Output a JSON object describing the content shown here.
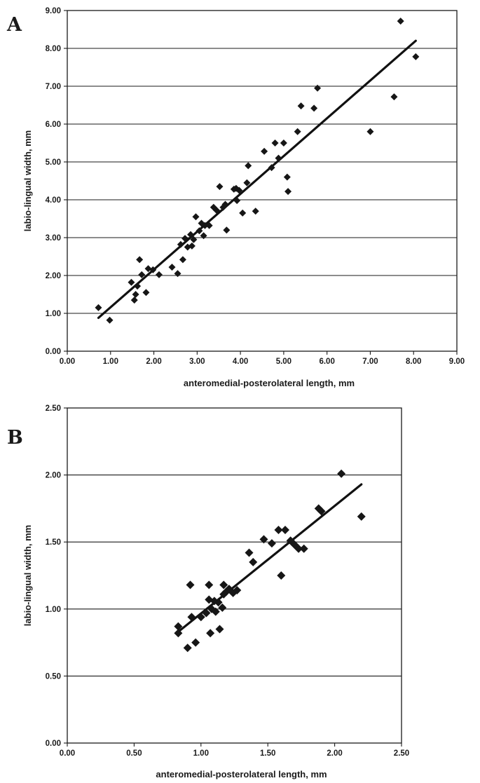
{
  "panels": [
    {
      "letter": "A"
    },
    {
      "letter": "B"
    }
  ],
  "chart_data": [
    {
      "type": "scatter",
      "xlabel": "anteromedial-posterolateral length, mm",
      "ylabel": "labio-lingual width, mm",
      "xlim": [
        0,
        9
      ],
      "ylim": [
        0,
        9
      ],
      "xticks": [
        "0.00",
        "1.00",
        "2.00",
        "3.00",
        "4.00",
        "5.00",
        "6.00",
        "7.00",
        "8.00",
        "9.00"
      ],
      "yticks": [
        "0.00",
        "1.00",
        "2.00",
        "3.00",
        "4.00",
        "5.00",
        "6.00",
        "7.00",
        "8.00",
        "9.00"
      ],
      "grid": "horizontal",
      "marker": "diamond",
      "series": [
        {
          "points": [
            [
              0.72,
              1.15
            ],
            [
              0.98,
              0.82
            ],
            [
              1.48,
              1.82
            ],
            [
              1.55,
              1.35
            ],
            [
              1.58,
              1.5
            ],
            [
              1.62,
              1.72
            ],
            [
              1.67,
              2.42
            ],
            [
              1.72,
              2.02
            ],
            [
              1.82,
              1.55
            ],
            [
              1.87,
              2.18
            ],
            [
              1.98,
              2.15
            ],
            [
              2.12,
              2.02
            ],
            [
              2.42,
              2.22
            ],
            [
              2.55,
              2.05
            ],
            [
              2.62,
              2.82
            ],
            [
              2.67,
              2.42
            ],
            [
              2.72,
              2.98
            ],
            [
              2.78,
              2.75
            ],
            [
              2.85,
              3.08
            ],
            [
              2.88,
              2.78
            ],
            [
              2.92,
              2.95
            ],
            [
              2.97,
              3.55
            ],
            [
              3.05,
              3.18
            ],
            [
              3.1,
              3.38
            ],
            [
              3.15,
              3.05
            ],
            [
              3.18,
              3.32
            ],
            [
              3.28,
              3.32
            ],
            [
              3.38,
              3.8
            ],
            [
              3.45,
              3.72
            ],
            [
              3.52,
              4.35
            ],
            [
              3.6,
              3.8
            ],
            [
              3.65,
              3.88
            ],
            [
              3.68,
              3.2
            ],
            [
              3.85,
              4.28
            ],
            [
              3.9,
              4.3
            ],
            [
              3.92,
              3.98
            ],
            [
              3.97,
              4.25
            ],
            [
              4.05,
              3.65
            ],
            [
              4.15,
              4.45
            ],
            [
              4.18,
              4.9
            ],
            [
              4.35,
              3.7
            ],
            [
              4.55,
              5.28
            ],
            [
              4.72,
              4.85
            ],
            [
              4.8,
              5.5
            ],
            [
              4.88,
              5.1
            ],
            [
              5.0,
              5.5
            ],
            [
              5.08,
              4.6
            ],
            [
              5.1,
              4.22
            ],
            [
              5.32,
              5.8
            ],
            [
              5.4,
              6.48
            ],
            [
              5.7,
              6.42
            ],
            [
              5.78,
              6.95
            ],
            [
              7.0,
              5.8
            ],
            [
              7.55,
              6.72
            ],
            [
              7.7,
              8.72
            ],
            [
              8.05,
              7.78
            ]
          ]
        }
      ],
      "trendline": [
        [
          0.72,
          0.88
        ],
        [
          8.05,
          8.2
        ]
      ]
    },
    {
      "type": "scatter",
      "xlabel": "anteromedial-posterolateral length, mm",
      "ylabel": "labio-lingual width, mm",
      "xlim": [
        0,
        2.5
      ],
      "ylim": [
        0,
        2.5
      ],
      "xticks": [
        "0.00",
        "0.50",
        "1.00",
        "1.50",
        "2.00",
        "2.50"
      ],
      "yticks": [
        "0.00",
        "0.50",
        "1.00",
        "1.50",
        "2.00",
        "2.50"
      ],
      "grid": "horizontal",
      "marker": "diamond",
      "series": [
        {
          "points": [
            [
              0.83,
              0.87
            ],
            [
              0.83,
              0.82
            ],
            [
              0.9,
              0.71
            ],
            [
              0.92,
              1.18
            ],
            [
              0.93,
              0.94
            ],
            [
              0.96,
              0.75
            ],
            [
              1.0,
              0.94
            ],
            [
              1.04,
              0.97
            ],
            [
              1.06,
              1.18
            ],
            [
              1.06,
              1.07
            ],
            [
              1.07,
              0.82
            ],
            [
              1.08,
              1.0
            ],
            [
              1.1,
              1.06
            ],
            [
              1.11,
              0.98
            ],
            [
              1.13,
              1.05
            ],
            [
              1.14,
              0.85
            ],
            [
              1.16,
              1.01
            ],
            [
              1.17,
              1.11
            ],
            [
              1.17,
              1.18
            ],
            [
              1.19,
              1.13
            ],
            [
              1.21,
              1.15
            ],
            [
              1.24,
              1.12
            ],
            [
              1.27,
              1.14
            ],
            [
              1.36,
              1.42
            ],
            [
              1.39,
              1.35
            ],
            [
              1.47,
              1.52
            ],
            [
              1.53,
              1.49
            ],
            [
              1.58,
              1.59
            ],
            [
              1.6,
              1.25
            ],
            [
              1.63,
              1.59
            ],
            [
              1.67,
              1.51
            ],
            [
              1.7,
              1.48
            ],
            [
              1.73,
              1.45
            ],
            [
              1.77,
              1.45
            ],
            [
              1.88,
              1.75
            ],
            [
              1.9,
              1.73
            ],
            [
              2.05,
              2.01
            ],
            [
              2.2,
              1.69
            ]
          ]
        }
      ],
      "trendline": [
        [
          0.83,
          0.83
        ],
        [
          2.2,
          1.93
        ]
      ]
    }
  ]
}
